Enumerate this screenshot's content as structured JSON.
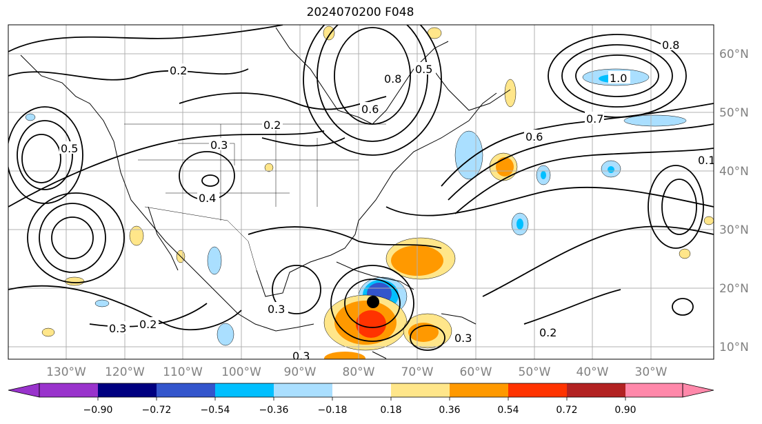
{
  "title": "2024070200 F048",
  "lon_labels": [
    "130°W",
    "120°W",
    "110°W",
    "100°W",
    "90°W",
    "80°W",
    "70°W",
    "60°W",
    "50°W",
    "40°W",
    "30°W"
  ],
  "lat_labels": [
    "60°N",
    "50°N",
    "40°N",
    "30°N",
    "20°N",
    "10°N"
  ],
  "contour_labels": [
    "0.2",
    "0.3",
    "0.4",
    "0.5",
    "0.6",
    "0.7",
    "0.8",
    "1.0",
    "0.3",
    "0.2",
    "0.3",
    "0.2",
    "0.3",
    "0.8",
    "0.6",
    "0.5",
    "0.2",
    "0.1",
    "0.3"
  ],
  "colorbar": {
    "ticks": [
      "−0.90",
      "−0.72",
      "−0.54",
      "−0.36",
      "−0.18",
      "0.18",
      "0.36",
      "0.54",
      "0.72",
      "0.90"
    ],
    "colors": [
      "#9933cc",
      "#000080",
      "#3355cc",
      "#00bfff",
      "#aadfff",
      "#ffffff",
      "#ffe68a",
      "#ff9900",
      "#ff3300",
      "#b22222",
      "#ff88aa"
    ]
  },
  "storm_marker": "black-dot"
}
